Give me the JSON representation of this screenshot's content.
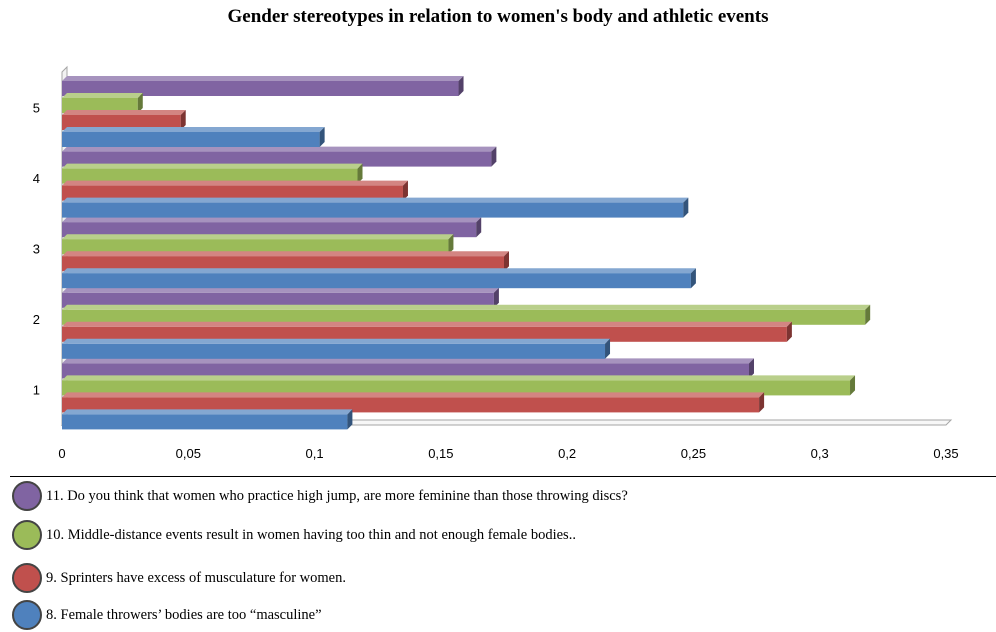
{
  "colors": {
    "background": "#ffffff",
    "axis": "#a6a6a6",
    "tick_label": "#000000"
  },
  "chart_data": {
    "type": "bar",
    "orientation": "horizontal",
    "style": "3d-clustered",
    "title": "Gender stereotypes in relation to women's body and athletic events",
    "categories": [
      "1",
      "2",
      "3",
      "4",
      "5"
    ],
    "xlim": [
      0,
      0.35
    ],
    "x_ticks": [
      "0",
      "0,05",
      "0,1",
      "0,15",
      "0,2",
      "0,25",
      "0,3",
      "0,35"
    ],
    "grid": false,
    "legend_position": "bottom",
    "series": [
      {
        "name": "8. Female throwers’ bodies are too “masculine”",
        "color": "#4f81bd",
        "values": [
          0.113,
          0.215,
          0.249,
          0.246,
          0.102
        ]
      },
      {
        "name": "9.  Sprinters  have excess of musculature for women.",
        "color": "#c0504d",
        "values": [
          0.276,
          0.287,
          0.175,
          0.135,
          0.047
        ]
      },
      {
        "name": "10. Middle-distance  events  result  in  women  having too thin and not enough female bodies..",
        "color": "#9bbb59",
        "values": [
          0.312,
          0.318,
          0.153,
          0.117,
          0.03
        ]
      },
      {
        "name": "11.  Do  you think  that  women  who  practice  high  jump,  are  more  feminine  than  those  throwing  discs?",
        "color": "#8064a2",
        "values": [
          0.272,
          0.171,
          0.164,
          0.17,
          0.157
        ]
      }
    ]
  }
}
